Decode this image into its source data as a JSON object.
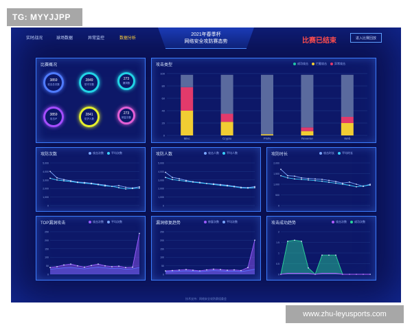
{
  "tag": "TG: MYYJJPP",
  "watermark": "www.zhu-leyusports.com",
  "nav": [
    "实时战况",
    "球场数据",
    "异常监控",
    "数据分析"
  ],
  "title_line1": "2021年春季杯",
  "title_line2": "网络安全攻防赛态势",
  "status": "比赛已结束",
  "top_button": "进入比赛回放",
  "panels": {
    "overview": {
      "title": "比赛概况",
      "rings": [
        {
          "value": "3859",
          "label": "攻击总次数",
          "color": "#4f7bff"
        },
        {
          "value": "2849",
          "label": "防守次数",
          "color": "#22d3e6"
        },
        {
          "value": "273",
          "label": "漏洞数",
          "color": "#22d3e6"
        },
        {
          "value": "3859",
          "label": "攻击IP",
          "color": "#a54dff"
        },
        {
          "value": "2841",
          "label": "防护人数",
          "color": "#e5ef2c"
        },
        {
          "value": "273",
          "label": "修复次数",
          "color": "#e15fd5"
        }
      ]
    },
    "attacks": {
      "title": "攻击类型",
      "legend": [
        {
          "name": "成功攻击",
          "color": "#21c6a5"
        },
        {
          "name": "拦截攻击",
          "color": "#f1cd33"
        },
        {
          "name": "异常攻击",
          "color": "#e23a6b"
        }
      ]
    },
    "line1": {
      "title": "攻防次数",
      "legend": [
        "攻击次数",
        "平均次数"
      ]
    },
    "line2": {
      "title": "攻防人数",
      "legend": [
        "攻击人数",
        "平均人数"
      ]
    },
    "line3": {
      "title": "攻防时长",
      "legend": [
        "攻击时长",
        "平均时长"
      ]
    },
    "area1": {
      "title": "TOP漏洞攻击",
      "legend": [
        "攻击次数",
        "平均次数"
      ]
    },
    "area2": {
      "title": "漏洞修复趋势",
      "legend": [
        "修复次数",
        "平均次数"
      ]
    },
    "area3": {
      "title": "攻击成功趋势",
      "legend": [
        "攻击次数",
        "成功次数"
      ]
    }
  },
  "footer": "技术支持：网络安全攻防赛组委会",
  "chart_data": [
    {
      "type": "bar",
      "categories": [
        "Misc",
        "Crypto",
        "PWN",
        "Reverse",
        "Web"
      ],
      "series": [
        {
          "name": "拦截攻击",
          "values": [
            40,
            22,
            2,
            7,
            20
          ]
        },
        {
          "name": "异常攻击",
          "values": [
            38,
            13,
            0,
            6,
            10
          ]
        },
        {
          "name": "成功攻击",
          "values": [
            20,
            63,
            96,
            85,
            68
          ]
        }
      ],
      "ylim": [
        0,
        100
      ],
      "yticks": [
        "100",
        "80",
        "60",
        "40",
        "20",
        "0"
      ]
    },
    {
      "type": "line",
      "x": [
        1,
        2,
        3,
        4,
        5,
        6,
        7,
        8,
        9,
        10,
        11,
        12,
        13,
        14
      ],
      "series": [
        {
          "name": "攻击次数",
          "values": [
            4000,
            3250,
            3050,
            2900,
            2760,
            2700,
            2620,
            2500,
            2400,
            2250,
            2350,
            2150,
            2060,
            2200
          ]
        },
        {
          "name": "平均次数",
          "values": [
            3200,
            3000,
            2900,
            2820,
            2700,
            2620,
            2550,
            2440,
            2300,
            2250,
            2100,
            1950,
            2000,
            2050
          ]
        }
      ],
      "ylim": [
        0,
        5000
      ],
      "yticks": [
        "5,000",
        "4,000",
        "3,000",
        "2,000",
        "1,000",
        "0"
      ]
    },
    {
      "type": "line",
      "x": [
        1,
        2,
        3,
        4,
        5,
        6,
        7,
        8,
        9,
        10,
        11,
        12,
        13,
        14
      ],
      "series": [
        {
          "name": "攻击人数",
          "values": [
            3900,
            3300,
            3150,
            2950,
            2800,
            2720,
            2600,
            2550,
            2460,
            2380,
            2260,
            2150,
            2100,
            2220
          ]
        },
        {
          "name": "平均人数",
          "values": [
            3300,
            3050,
            2950,
            2850,
            2750,
            2660,
            2580,
            2470,
            2380,
            2300,
            2200,
            2080,
            2050,
            2100
          ]
        }
      ],
      "ylim": [
        0,
        5000
      ],
      "yticks": [
        "5,000",
        "4,000",
        "3,000",
        "2,000",
        "1,000",
        "0"
      ]
    },
    {
      "type": "line",
      "x": [
        1,
        2,
        3,
        4,
        5,
        6,
        7,
        8,
        9,
        10,
        11,
        12,
        13,
        14
      ],
      "series": [
        {
          "name": "攻击时长",
          "values": [
            1700,
            1400,
            1380,
            1300,
            1270,
            1250,
            1230,
            1180,
            1130,
            1050,
            1100,
            1000,
            900,
            1000
          ]
        },
        {
          "name": "平均时长",
          "values": [
            1400,
            1300,
            1250,
            1230,
            1200,
            1170,
            1140,
            1090,
            1050,
            1000,
            950,
            880,
            920,
            960
          ]
        }
      ],
      "ylim": [
        0,
        2000
      ],
      "yticks": [
        "2,000",
        "1,500",
        "1,000",
        "500",
        "0"
      ]
    },
    {
      "type": "area",
      "x": [
        1,
        2,
        3,
        4,
        5,
        6,
        7,
        8,
        9,
        10,
        11,
        12,
        13,
        14
      ],
      "series": [
        {
          "name": "攻击次数",
          "values": [
            40,
            45,
            55,
            60,
            50,
            42,
            52,
            60,
            50,
            45,
            48,
            40,
            42,
            240
          ]
        },
        {
          "name": "平均次数",
          "values": [
            30,
            34,
            38,
            40,
            36,
            32,
            38,
            42,
            38,
            34,
            36,
            30,
            32,
            40
          ]
        }
      ],
      "ylim": [
        0,
        250
      ],
      "yticks": [
        "250",
        "200",
        "150",
        "100",
        "50",
        "0"
      ]
    },
    {
      "type": "area",
      "x": [
        1,
        2,
        3,
        4,
        5,
        6,
        7,
        8,
        9,
        10,
        11,
        12,
        13,
        14
      ],
      "series": [
        {
          "name": "修复次数",
          "values": [
            20,
            22,
            25,
            28,
            24,
            20,
            26,
            30,
            28,
            24,
            26,
            22,
            40,
            200
          ]
        },
        {
          "name": "平均次数",
          "values": [
            14,
            16,
            18,
            20,
            18,
            16,
            19,
            22,
            20,
            18,
            19,
            16,
            22,
            30
          ]
        }
      ],
      "ylim": [
        0,
        250
      ],
      "yticks": [
        "250",
        "200",
        "150",
        "100",
        "50",
        "0"
      ]
    },
    {
      "type": "area",
      "x": [
        1,
        2,
        3,
        4,
        5,
        6,
        7,
        8,
        9,
        10,
        11,
        12,
        13,
        14
      ],
      "series": [
        {
          "name": "攻击次数",
          "values": [
            0,
            1.55,
            1.6,
            1.55,
            0.3,
            0,
            0.9,
            0.9,
            0.9,
            0,
            0,
            0,
            0,
            0
          ]
        },
        {
          "name": "成功次数",
          "values": [
            0,
            0.05,
            0.05,
            0.05,
            0.05,
            0,
            0.05,
            0.05,
            0.05,
            0,
            0,
            0,
            0,
            0
          ]
        }
      ],
      "ylim": [
        0,
        2
      ],
      "yticks": [
        "2",
        "1.5",
        "1",
        "0.5",
        "0"
      ]
    }
  ]
}
